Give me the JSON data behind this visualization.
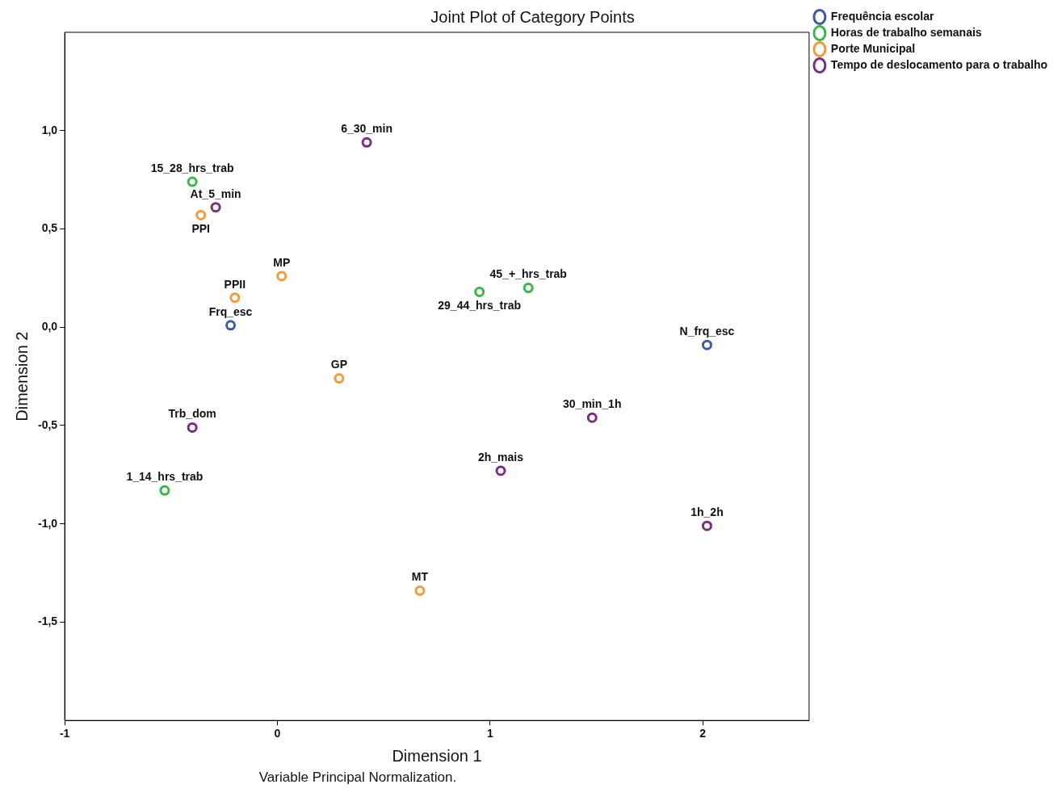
{
  "chart_data": {
    "type": "scatter",
    "title": "Joint Plot of Category Points",
    "xlabel": "Dimension 1",
    "ylabel": "Dimension 2",
    "xlim": [
      -1,
      2.5
    ],
    "xticks": [
      -1,
      0,
      1,
      2
    ],
    "ylim": [
      -2,
      1.5
    ],
    "yticks": [
      {
        "value": 1,
        "label": "1,0"
      },
      {
        "value": 0.5,
        "label": "0,5"
      },
      {
        "value": 0,
        "label": "0,0"
      },
      {
        "value": -0.5,
        "label": "-0,5"
      },
      {
        "value": -1,
        "label": "-1,0"
      },
      {
        "value": -1.5,
        "label": "-1,5"
      }
    ],
    "grid": false,
    "legend": "top right",
    "marker": "circle",
    "series": [
      {
        "name": "Frequência escolar",
        "color": "#3b5ba5",
        "x": [
          -0.22,
          2.02
        ],
        "values": [
          0.01,
          -0.09
        ]
      },
      {
        "name": "Horas de trabalho semanais",
        "color": "#3db54a",
        "x": [
          -0.4,
          0.95,
          1.18,
          -0.53
        ],
        "values": [
          0.74,
          0.18,
          0.2,
          -0.83
        ]
      },
      {
        "name": "Porte Municipal",
        "color": "#f39a3c",
        "x": [
          -0.36,
          0.02,
          -0.2,
          0.29,
          0.67
        ],
        "values": [
          0.57,
          0.26,
          0.15,
          -0.26,
          -1.34
        ]
      },
      {
        "name": "Tempo de deslocamento para o trabalho",
        "color": "#7b2d82",
        "x": [
          0.42,
          -0.29,
          -0.4,
          1.48,
          1.05,
          2.02
        ],
        "values": [
          0.94,
          0.61,
          -0.51,
          -0.46,
          -0.73,
          -1.01
        ]
      }
    ],
    "annotations": [
      {
        "text": "6_30_min",
        "x": 0.42,
        "y": 0.94
      },
      {
        "text": "15_28_hrs_trab",
        "x": -0.4,
        "y": 0.74
      },
      {
        "text": "At_5_min",
        "x": -0.29,
        "y": 0.61
      },
      {
        "text": "PPI",
        "x": -0.36,
        "y": 0.57
      },
      {
        "text": "MP",
        "x": 0.02,
        "y": 0.26
      },
      {
        "text": "45_+_hrs_trab",
        "x": 1.18,
        "y": 0.2
      },
      {
        "text": "29_44_hrs_trab",
        "x": 0.95,
        "y": 0.18
      },
      {
        "text": "PPII",
        "x": -0.2,
        "y": 0.15
      },
      {
        "text": "Frq_esc",
        "x": -0.22,
        "y": 0.01
      },
      {
        "text": "N_frq_esc",
        "x": 2.02,
        "y": -0.09
      },
      {
        "text": "GP",
        "x": 0.29,
        "y": -0.26
      },
      {
        "text": "30_min_1h",
        "x": 1.48,
        "y": -0.46
      },
      {
        "text": "Trb_dom",
        "x": -0.4,
        "y": -0.51
      },
      {
        "text": "2h_mais",
        "x": 1.05,
        "y": -0.73
      },
      {
        "text": "1_14_hrs_trab",
        "x": -0.53,
        "y": -0.83
      },
      {
        "text": "1h_2h",
        "x": 2.02,
        "y": -1.01
      },
      {
        "text": "MT",
        "x": 0.67,
        "y": -1.34
      },
      "Variable Principal Normalization."
    ]
  }
}
